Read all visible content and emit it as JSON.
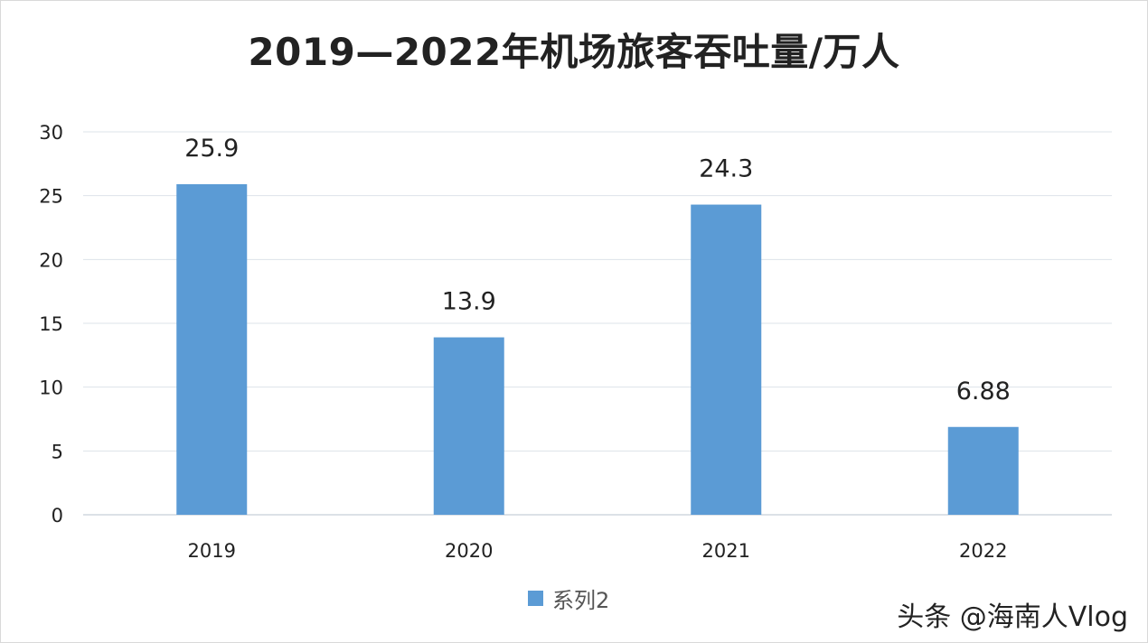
{
  "chart_data": {
    "type": "bar",
    "title": "2019—2022年机场旅客吞吐量/万人",
    "categories": [
      "2019",
      "2020",
      "2021",
      "2022"
    ],
    "series": [
      {
        "name": "系列2",
        "values": [
          25.9,
          13.9,
          24.3,
          6.88
        ],
        "labels": [
          "25.9",
          "13.9",
          "24.3",
          "6.88"
        ],
        "color": "#5b9bd5"
      }
    ],
    "ylim": [
      0,
      30
    ],
    "yticks": [
      0,
      5,
      10,
      15,
      20,
      25,
      30
    ],
    "grid": true,
    "legend": "bottom"
  },
  "watermark": "头条 @海南人Vlog",
  "colors": {
    "bar": "#5b9bd5",
    "grid": "#dde3ea",
    "axis": "#d0d7df",
    "text": "#222222",
    "muted": "#555555"
  }
}
